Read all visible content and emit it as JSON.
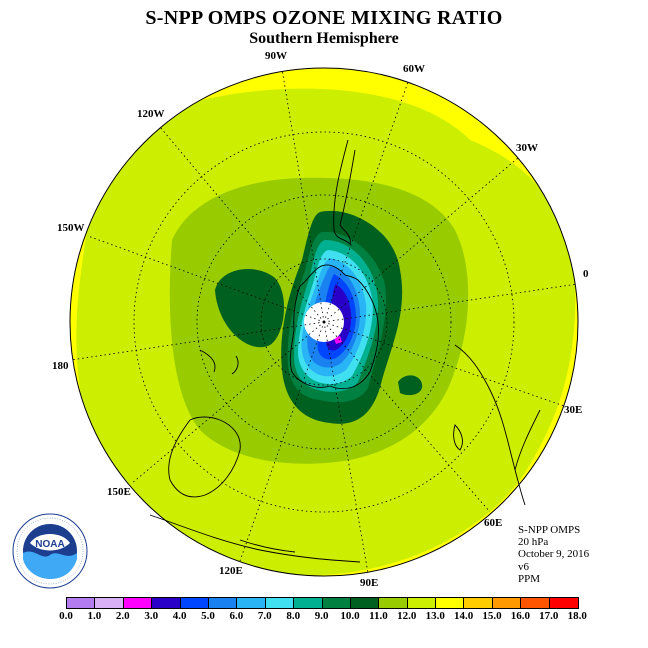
{
  "title": "S-NPP OMPS OZONE MIXING RATIO",
  "subtitle": "Southern Hemisphere",
  "longitude_labels": [
    "90W",
    "60W",
    "30W",
    "0",
    "30E",
    "60E",
    "90E",
    "120E",
    "150E",
    "180",
    "150W",
    "120W"
  ],
  "info": {
    "instrument": "S-NPP OMPS",
    "pressure": "20 hPa",
    "date": "October 9, 2016",
    "version": "v6",
    "units": "PPM"
  },
  "logo": {
    "text": "NOAA",
    "ring_text": "NATIONAL OCEANIC AND ATMOSPHERIC ADMINISTRATION · U.S. DEPARTMENT OF COMMERCE"
  },
  "colorbar": {
    "labels": [
      "0.0",
      "1.0",
      "2.0",
      "3.0",
      "4.0",
      "5.0",
      "6.0",
      "7.0",
      "8.0",
      "9.0",
      "10.0",
      "11.0",
      "12.0",
      "13.0",
      "14.0",
      "15.0",
      "16.0",
      "17.0",
      "18.0"
    ],
    "colors": [
      "#b37cf0",
      "#d9b0f5",
      "#ff00ff",
      "#2800c8",
      "#0046ff",
      "#1a82f0",
      "#28b4f5",
      "#40e0f0",
      "#00b090",
      "#008040",
      "#006020",
      "#99cc00",
      "#ccee00",
      "#ffff00",
      "#ffcc00",
      "#ff9900",
      "#ff5500",
      "#ff0000",
      "#8b5a3c"
    ]
  },
  "field_colors": {
    "band_13": "#ffff00",
    "band_12": "#ccee00",
    "band_11": "#99cc00",
    "band_10": "#006020",
    "band_9": "#008040",
    "band_8": "#00b090",
    "band_7": "#40e0f0",
    "band_6": "#28b4f5",
    "band_5": "#1a82f0",
    "band_4": "#0046ff",
    "band_3": "#2800c8",
    "band_2": "#ff00ff"
  }
}
